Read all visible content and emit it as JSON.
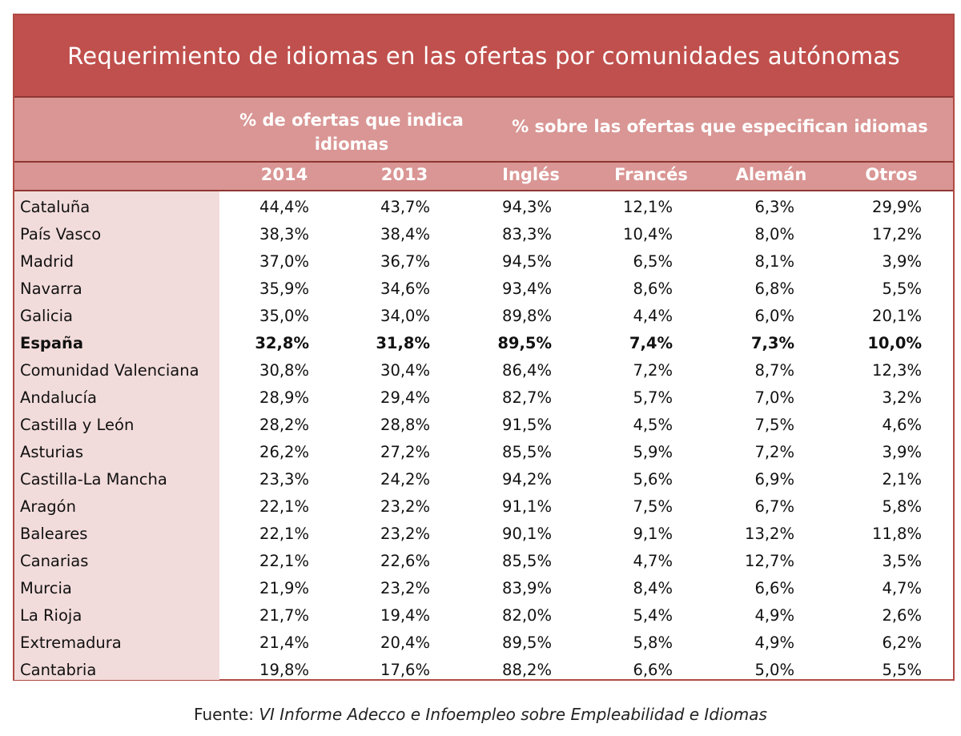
{
  "title": "Requerimiento de idiomas en las ofertas por comunidades autónomas",
  "header": {
    "group1": "% de ofertas que indica idiomas",
    "group2": "% sobre las ofertas que especifican idiomas",
    "columns": [
      "2014",
      "2013",
      "Inglés",
      "Francés",
      "Alemán",
      "Otros"
    ]
  },
  "rows": [
    {
      "name": "Cataluña",
      "values": [
        "44,4%",
        "43,7%",
        "94,3%",
        "12,1%",
        "6,3%",
        "29,9%"
      ]
    },
    {
      "name": "País Vasco",
      "values": [
        "38,3%",
        "38,4%",
        "83,3%",
        "10,4%",
        "8,0%",
        "17,2%"
      ]
    },
    {
      "name": "Madrid",
      "values": [
        "37,0%",
        "36,7%",
        "94,5%",
        "6,5%",
        "8,1%",
        "3,9%"
      ]
    },
    {
      "name": "Navarra",
      "values": [
        "35,9%",
        "34,6%",
        "93,4%",
        "8,6%",
        "6,8%",
        "5,5%"
      ]
    },
    {
      "name": "Galicia",
      "values": [
        "35,0%",
        "34,0%",
        "89,8%",
        "4,4%",
        "6,0%",
        "20,1%"
      ]
    },
    {
      "name": "España",
      "values": [
        "32,8%",
        "31,8%",
        "89,5%",
        "7,4%",
        "7,3%",
        "10,0%"
      ],
      "bold": true
    },
    {
      "name": "Comunidad Valenciana",
      "values": [
        "30,8%",
        "30,4%",
        "86,4%",
        "7,2%",
        "8,7%",
        "12,3%"
      ]
    },
    {
      "name": "Andalucía",
      "values": [
        "28,9%",
        "29,4%",
        "82,7%",
        "5,7%",
        "7,0%",
        "3,2%"
      ]
    },
    {
      "name": "Castilla y León",
      "values": [
        "28,2%",
        "28,8%",
        "91,5%",
        "4,5%",
        "7,5%",
        "4,6%"
      ]
    },
    {
      "name": "Asturias",
      "values": [
        "26,2%",
        "27,2%",
        "85,5%",
        "5,9%",
        "7,2%",
        "3,9%"
      ]
    },
    {
      "name": "Castilla-La Mancha",
      "values": [
        "23,3%",
        "24,2%",
        "94,2%",
        "5,6%",
        "6,9%",
        "2,1%"
      ]
    },
    {
      "name": "Aragón",
      "values": [
        "22,1%",
        "23,2%",
        "91,1%",
        "7,5%",
        "6,7%",
        "5,8%"
      ]
    },
    {
      "name": "Baleares",
      "values": [
        "22,1%",
        "23,2%",
        "90,1%",
        "9,1%",
        "13,2%",
        "11,8%"
      ]
    },
    {
      "name": "Canarias",
      "values": [
        "22,1%",
        "22,6%",
        "85,5%",
        "4,7%",
        "12,7%",
        "3,5%"
      ]
    },
    {
      "name": "Murcia",
      "values": [
        "21,9%",
        "23,2%",
        "83,9%",
        "8,4%",
        "6,6%",
        "4,7%"
      ]
    },
    {
      "name": "La Rioja",
      "values": [
        "21,7%",
        "19,4%",
        "82,0%",
        "5,4%",
        "4,9%",
        "2,6%"
      ]
    },
    {
      "name": "Extremadura",
      "values": [
        "21,4%",
        "20,4%",
        "89,5%",
        "5,8%",
        "4,9%",
        "6,2%"
      ]
    },
    {
      "name": "Cantabria",
      "values": [
        "19,8%",
        "17,6%",
        "88,2%",
        "6,6%",
        "5,0%",
        "5,5%"
      ]
    }
  ],
  "source": {
    "label": "Fuente:",
    "text": "VI Informe Adecco e Infoempleo sobre Empleabilidad e Idiomas"
  },
  "colors": {
    "title_bg": "#c0504d",
    "header_bg": "#d99694",
    "first_col_bg": "#f2dcdb",
    "border": "#b04a45"
  }
}
